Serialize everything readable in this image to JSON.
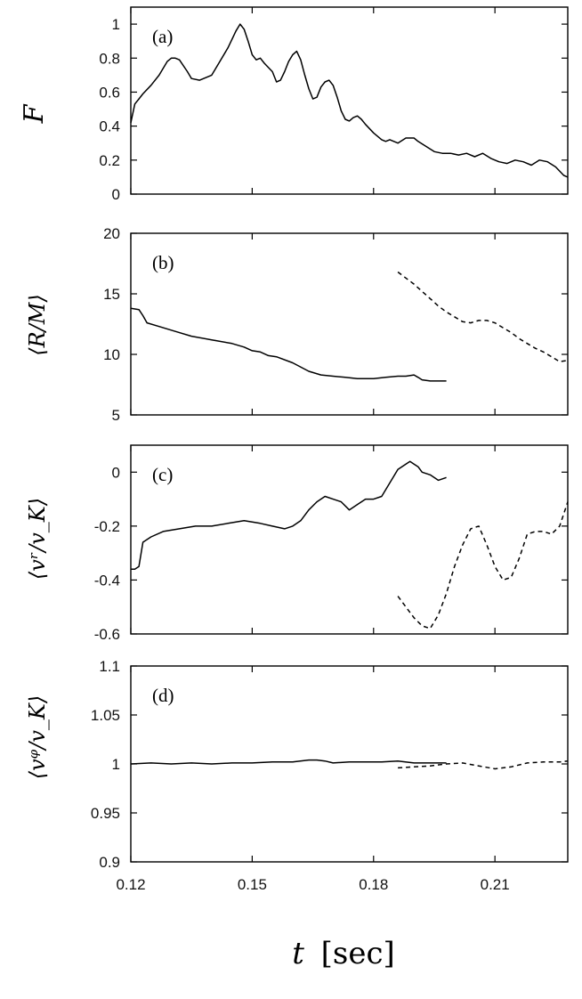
{
  "chart_data": [
    {
      "type": "line",
      "panel_label": "(a)",
      "ylabel": "F",
      "xlim": [
        0.12,
        0.228
      ],
      "ylim": [
        0,
        1.1
      ],
      "yticks": [
        0,
        0.2,
        0.4,
        0.6,
        0.8,
        1
      ],
      "ytick_labels": [
        "0",
        "0.2",
        "0.4",
        "0.6",
        "0.8",
        "1"
      ],
      "series": [
        {
          "name": "solid",
          "style": "solid",
          "x": [
            0.12,
            0.121,
            0.122,
            0.123,
            0.125,
            0.127,
            0.129,
            0.13,
            0.131,
            0.132,
            0.134,
            0.135,
            0.137,
            0.14,
            0.142,
            0.144,
            0.146,
            0.147,
            0.148,
            0.149,
            0.15,
            0.151,
            0.152,
            0.153,
            0.155,
            0.156,
            0.157,
            0.158,
            0.159,
            0.16,
            0.161,
            0.162,
            0.163,
            0.164,
            0.165,
            0.166,
            0.167,
            0.168,
            0.169,
            0.17,
            0.171,
            0.172,
            0.173,
            0.174,
            0.175,
            0.176,
            0.177,
            0.178,
            0.18,
            0.182,
            0.183,
            0.184,
            0.186,
            0.188,
            0.19,
            0.191,
            0.193,
            0.195,
            0.197,
            0.199,
            0.201,
            0.203,
            0.205,
            0.207,
            0.209,
            0.211,
            0.213,
            0.215,
            0.217,
            0.219,
            0.221,
            0.223,
            0.225,
            0.227,
            0.228
          ],
          "y": [
            0.42,
            0.53,
            0.56,
            0.59,
            0.64,
            0.7,
            0.78,
            0.8,
            0.8,
            0.79,
            0.72,
            0.68,
            0.67,
            0.7,
            0.78,
            0.86,
            0.96,
            1.0,
            0.97,
            0.9,
            0.82,
            0.79,
            0.8,
            0.77,
            0.72,
            0.66,
            0.67,
            0.72,
            0.78,
            0.82,
            0.84,
            0.79,
            0.7,
            0.62,
            0.56,
            0.57,
            0.63,
            0.66,
            0.67,
            0.64,
            0.57,
            0.49,
            0.44,
            0.43,
            0.45,
            0.46,
            0.44,
            0.41,
            0.36,
            0.32,
            0.31,
            0.32,
            0.3,
            0.33,
            0.33,
            0.31,
            0.28,
            0.25,
            0.24,
            0.24,
            0.23,
            0.24,
            0.22,
            0.24,
            0.21,
            0.19,
            0.18,
            0.2,
            0.19,
            0.17,
            0.2,
            0.19,
            0.16,
            0.11,
            0.1
          ]
        }
      ]
    },
    {
      "type": "line",
      "panel_label": "(b)",
      "ylabel": "⟨R/M⟩",
      "xlim": [
        0.12,
        0.228
      ],
      "ylim": [
        5,
        20
      ],
      "yticks": [
        5,
        10,
        15,
        20
      ],
      "ytick_labels": [
        "5",
        "10",
        "15",
        "20"
      ],
      "series": [
        {
          "name": "solid",
          "style": "solid",
          "x": [
            0.12,
            0.122,
            0.123,
            0.124,
            0.127,
            0.131,
            0.135,
            0.14,
            0.145,
            0.148,
            0.15,
            0.152,
            0.154,
            0.156,
            0.16,
            0.164,
            0.167,
            0.17,
            0.173,
            0.176,
            0.18,
            0.183,
            0.186,
            0.188,
            0.19,
            0.191,
            0.192,
            0.194,
            0.196,
            0.198
          ],
          "y": [
            13.8,
            13.7,
            13.2,
            12.6,
            12.3,
            11.9,
            11.5,
            11.2,
            10.9,
            10.6,
            10.3,
            10.2,
            9.9,
            9.8,
            9.3,
            8.6,
            8.3,
            8.2,
            8.1,
            8.0,
            8.0,
            8.1,
            8.2,
            8.2,
            8.3,
            8.1,
            7.9,
            7.8,
            7.8,
            7.8
          ]
        },
        {
          "name": "dashed",
          "style": "dashed",
          "x": [
            0.186,
            0.188,
            0.19,
            0.192,
            0.194,
            0.196,
            0.198,
            0.2,
            0.202,
            0.204,
            0.206,
            0.208,
            0.21,
            0.212,
            0.214,
            0.216,
            0.218,
            0.22,
            0.222,
            0.224,
            0.226,
            0.228
          ],
          "y": [
            16.8,
            16.3,
            15.8,
            15.2,
            14.6,
            14.0,
            13.5,
            13.1,
            12.7,
            12.6,
            12.8,
            12.8,
            12.6,
            12.2,
            11.8,
            11.3,
            10.9,
            10.5,
            10.2,
            9.8,
            9.4,
            9.5
          ]
        }
      ]
    },
    {
      "type": "line",
      "panel_label": "(c)",
      "ylabel": "⟨vʳ/v_K⟩",
      "xlim": [
        0.12,
        0.228
      ],
      "ylim": [
        -0.6,
        0.1
      ],
      "yticks": [
        -0.6,
        -0.4,
        -0.2,
        0
      ],
      "ytick_labels": [
        "-0.6",
        "-0.4",
        "-0.2",
        "0"
      ],
      "series": [
        {
          "name": "solid",
          "style": "solid",
          "x": [
            0.12,
            0.121,
            0.122,
            0.123,
            0.125,
            0.128,
            0.132,
            0.136,
            0.14,
            0.144,
            0.148,
            0.152,
            0.155,
            0.158,
            0.16,
            0.162,
            0.164,
            0.166,
            0.168,
            0.17,
            0.172,
            0.174,
            0.176,
            0.178,
            0.18,
            0.182,
            0.184,
            0.186,
            0.188,
            0.189,
            0.19,
            0.191,
            0.192,
            0.194,
            0.196,
            0.198
          ],
          "y": [
            -0.36,
            -0.36,
            -0.35,
            -0.26,
            -0.24,
            -0.22,
            -0.21,
            -0.2,
            -0.2,
            -0.19,
            -0.18,
            -0.19,
            -0.2,
            -0.21,
            -0.2,
            -0.18,
            -0.14,
            -0.11,
            -0.09,
            -0.1,
            -0.11,
            -0.14,
            -0.12,
            -0.1,
            -0.1,
            -0.09,
            -0.04,
            0.01,
            0.03,
            0.04,
            0.03,
            0.02,
            0.0,
            -0.01,
            -0.03,
            -0.02
          ]
        },
        {
          "name": "dashed",
          "style": "dashed",
          "x": [
            0.186,
            0.188,
            0.19,
            0.192,
            0.194,
            0.196,
            0.198,
            0.2,
            0.202,
            0.204,
            0.206,
            0.208,
            0.21,
            0.212,
            0.214,
            0.216,
            0.218,
            0.22,
            0.222,
            0.224,
            0.226,
            0.228
          ],
          "y": [
            -0.46,
            -0.5,
            -0.54,
            -0.57,
            -0.58,
            -0.53,
            -0.45,
            -0.35,
            -0.27,
            -0.21,
            -0.2,
            -0.27,
            -0.35,
            -0.4,
            -0.39,
            -0.32,
            -0.23,
            -0.22,
            -0.22,
            -0.23,
            -0.2,
            -0.11
          ]
        }
      ]
    },
    {
      "type": "line",
      "panel_label": "(d)",
      "ylabel": "⟨vᵠ/v_K⟩",
      "xlim": [
        0.12,
        0.228
      ],
      "ylim": [
        0.9,
        1.1
      ],
      "yticks": [
        0.9,
        0.95,
        1,
        1.05,
        1.1
      ],
      "ytick_labels": [
        "0.9",
        "0.95",
        "1",
        "1.05",
        "1.1"
      ],
      "series": [
        {
          "name": "solid",
          "style": "solid",
          "x": [
            0.12,
            0.125,
            0.13,
            0.135,
            0.14,
            0.145,
            0.15,
            0.155,
            0.16,
            0.164,
            0.166,
            0.168,
            0.17,
            0.174,
            0.178,
            0.182,
            0.186,
            0.19,
            0.194,
            0.198
          ],
          "y": [
            1.0,
            1.001,
            1.0,
            1.001,
            1.0,
            1.001,
            1.001,
            1.002,
            1.002,
            1.004,
            1.004,
            1.003,
            1.001,
            1.002,
            1.002,
            1.002,
            1.003,
            1.001,
            1.001,
            1.001
          ]
        },
        {
          "name": "dashed",
          "style": "dashed",
          "x": [
            0.186,
            0.19,
            0.194,
            0.198,
            0.202,
            0.206,
            0.21,
            0.214,
            0.218,
            0.222,
            0.226,
            0.228
          ],
          "y": [
            0.996,
            0.997,
            0.998,
            1.0,
            1.001,
            0.998,
            0.995,
            0.997,
            1.001,
            1.002,
            1.002,
            1.003
          ]
        }
      ]
    }
  ],
  "x_axis": {
    "ticks": [
      0.12,
      0.15,
      0.18,
      0.21
    ],
    "tick_labels": [
      "0.12",
      "0.15",
      "0.18",
      "0.21"
    ],
    "label_var": "t",
    "label_unit": "[sec]"
  }
}
